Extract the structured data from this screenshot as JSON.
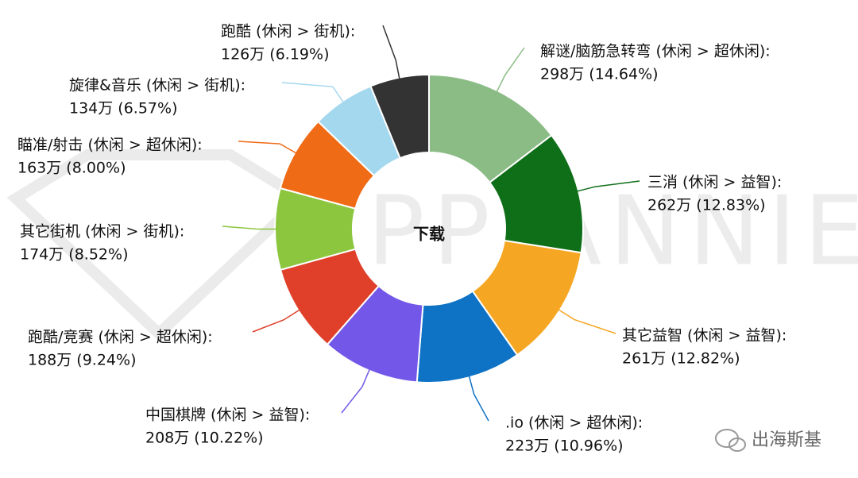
{
  "chart_data": {
    "type": "donut",
    "center_label": "下载",
    "watermark": "APP ANNIE",
    "logo_text": "出海斯基",
    "categories": [
      "解谜/脑筋急转弯 (休闲 > 超休闲):",
      "三消 (休闲 > 益智):",
      "其它益智 (休闲 > 益智):",
      ".io (休闲 > 超休闲):",
      "中国棋牌 (休闲 > 益智):",
      "跑酷/竞赛 (休闲 > 超休闲):",
      "其它街机 (休闲 > 街机):",
      "瞄准/射击 (休闲 > 超休闲):",
      "旋律&音乐 (休闲 > 街机):",
      "跑酷 (休闲 > 街机):"
    ],
    "values": [
      298,
      262,
      261,
      223,
      208,
      188,
      174,
      163,
      134,
      126
    ],
    "value_labels": [
      "298万 (14.64%)",
      "262万 (12.83%)",
      "261万 (12.82%)",
      "223万 (10.96%)",
      "208万 (10.22%)",
      "188万 (9.24%)",
      "174万 (8.52%)",
      "163万 (8.00%)",
      "134万 (6.57%)",
      "126万 (6.19%)"
    ],
    "colors": [
      "#8bbc86",
      "#0f6e18",
      "#f5a623",
      "#0e72c5",
      "#7257e8",
      "#e0402a",
      "#8cc63f",
      "#ef6b16",
      "#a3d8ee",
      "#333333"
    ]
  }
}
